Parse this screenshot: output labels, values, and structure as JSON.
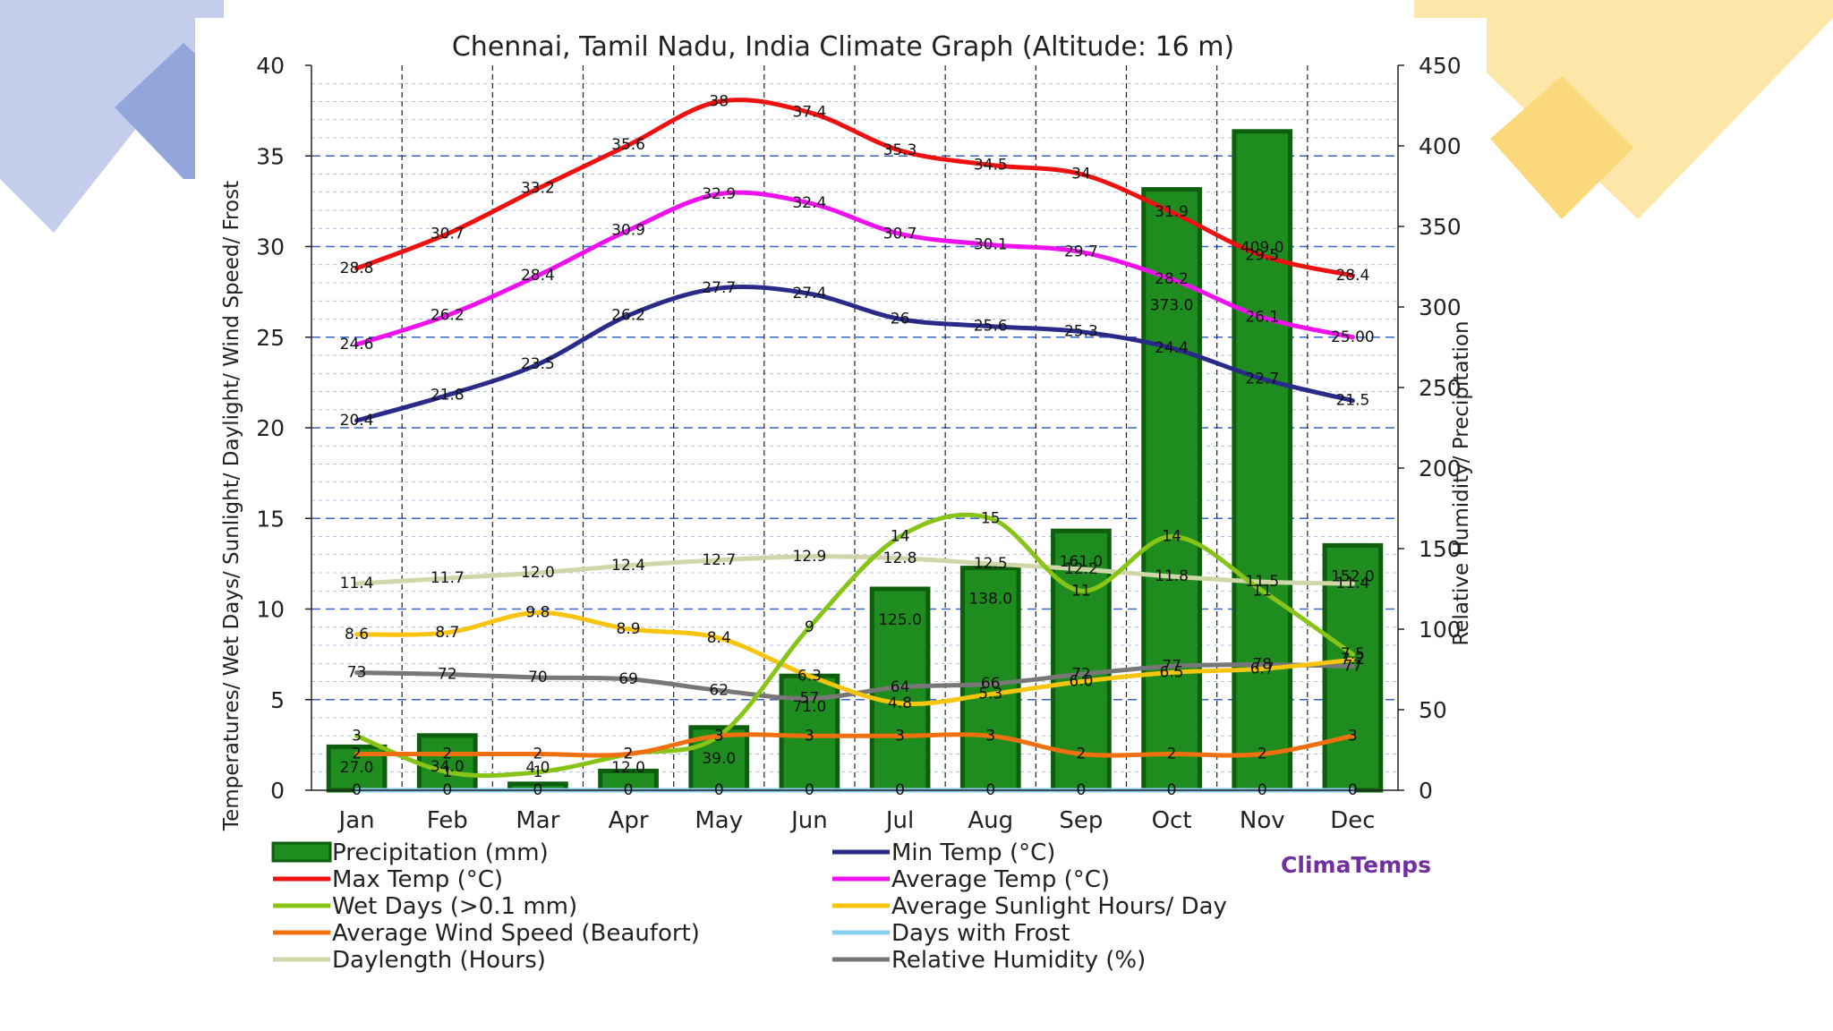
{
  "chart_data": {
    "type": "bar+line",
    "title": "Chennai, Tamil Nadu, India Climate Graph (Altitude: 16 m)",
    "ylabel_left": "Temperatures/ Wet Days/ Sunlight/ Daylight/ Wind Speed/ Frost",
    "ylabel_right": "Relative Humidity/ Precipitation",
    "ylim_left": [
      0,
      40
    ],
    "ylim_right": [
      0,
      450
    ],
    "yticks_left": [
      "0",
      "5",
      "10",
      "15",
      "20",
      "25",
      "30",
      "35",
      "40"
    ],
    "yticks_right": [
      "0",
      "50",
      "100",
      "150",
      "200",
      "250",
      "300",
      "350",
      "400",
      "450"
    ],
    "categories": [
      "Jan",
      "Feb",
      "Mar",
      "Apr",
      "May",
      "Jun",
      "Jul",
      "Aug",
      "Sep",
      "Oct",
      "Nov",
      "Dec"
    ],
    "bars": {
      "name": "Precipitation (mm)",
      "axis": "right",
      "color": "#1e8c1e",
      "values": [
        27.0,
        34.0,
        4.0,
        12.0,
        39.0,
        71.0,
        125.0,
        138.0,
        161.0,
        373.0,
        409.0,
        152.0
      ],
      "labels": [
        "27.0",
        "34.0",
        "4.0",
        "12.0",
        "39.0",
        "71.0",
        "125.0",
        "138.0",
        "161.0",
        "373.0",
        "409.0",
        "152.0"
      ]
    },
    "series": [
      {
        "name": "Max Temp (°C)",
        "color": "#ee1111",
        "axis": "left",
        "values": [
          28.8,
          30.7,
          33.2,
          35.6,
          38,
          37.4,
          35.3,
          34.5,
          34,
          31.9,
          29.5,
          28.4
        ],
        "labels": [
          "28.8",
          "30.7",
          "33.2",
          "35.6",
          "38",
          "37.4",
          "35.3",
          "34.5",
          "34",
          "31.9",
          "29.5",
          "28.4"
        ]
      },
      {
        "name": "Average Temp (°C)",
        "color": "#ee11ee",
        "axis": "left",
        "values": [
          24.6,
          26.2,
          28.4,
          30.9,
          32.9,
          32.4,
          30.7,
          30.1,
          29.7,
          28.2,
          26.1,
          25.0
        ],
        "labels": [
          "24.6",
          "26.2",
          "28.4",
          "30.9",
          "32.9",
          "32.4",
          "30.7",
          "30.1",
          "29.7",
          "28.2",
          "26.1",
          "25.00"
        ]
      },
      {
        "name": "Min Temp (°C)",
        "color": "#2a2a88",
        "axis": "left",
        "values": [
          20.4,
          21.8,
          23.5,
          26.2,
          27.7,
          27.4,
          26,
          25.6,
          25.3,
          24.4,
          22.7,
          21.5
        ],
        "labels": [
          "20.4",
          "21.8",
          "23.5",
          "26.2",
          "27.7",
          "27.4",
          "26",
          "25.6",
          "25.3",
          "24.4",
          "22.7",
          "21.5"
        ]
      },
      {
        "name": "Wet Days (>0.1 mm)",
        "color": "#88c418",
        "axis": "left",
        "values": [
          3,
          1,
          1,
          2,
          3,
          9,
          14,
          15,
          11,
          14,
          11,
          7.5
        ],
        "labels": [
          "3",
          "1",
          "1",
          "2",
          "3",
          "9",
          "14",
          "15",
          "11",
          "14",
          "11",
          "7.5"
        ]
      },
      {
        "name": "Average Sunlight Hours/ Day",
        "color": "#f7c410",
        "axis": "left",
        "values": [
          8.6,
          8.7,
          9.8,
          8.9,
          8.4,
          6.3,
          4.8,
          5.3,
          6.0,
          6.5,
          6.7,
          7.2
        ],
        "labels": [
          "8.6",
          "8.7",
          "9.8",
          "8.9",
          "8.4",
          "6.3",
          "4.8",
          "5.3",
          "6.0",
          "6.5",
          "6.7",
          "7.2"
        ]
      },
      {
        "name": "Daylength (Hours)",
        "color": "#cfd6a8",
        "axis": "left",
        "values": [
          11.4,
          11.7,
          12.0,
          12.4,
          12.7,
          12.9,
          12.8,
          12.5,
          12.2,
          11.8,
          11.5,
          11.4
        ],
        "labels": [
          "11.4",
          "11.7",
          "12.0",
          "12.4",
          "12.7",
          "12.9",
          "12.8",
          "12.5",
          "12.2",
          "11.8",
          "11.5",
          "11.4"
        ]
      },
      {
        "name": "Relative Humidity (%)",
        "color": "#777777",
        "axis": "right",
        "values": [
          73,
          72,
          70,
          69,
          62,
          57,
          64,
          66,
          72,
          77,
          78,
          77
        ],
        "labels": [
          "73",
          "72",
          "70",
          "69",
          "62",
          "57",
          "64",
          "66",
          "72",
          "77",
          "78",
          "77"
        ]
      },
      {
        "name": "Average Wind Speed (Beaufort)",
        "color": "#f07010",
        "axis": "left",
        "values": [
          2,
          2,
          2,
          2,
          3,
          3,
          3,
          3,
          2,
          2,
          2,
          3
        ],
        "labels": [
          "2",
          "2",
          "2",
          "2",
          "3",
          "3",
          "3",
          "3",
          "2",
          "2",
          "2",
          "3"
        ]
      },
      {
        "name": "Days with Frost",
        "color": "#88ccee",
        "axis": "left",
        "values": [
          0,
          0,
          0,
          0,
          0,
          0,
          0,
          0,
          0,
          0,
          0,
          0
        ],
        "labels": [
          "0",
          "0",
          "0",
          "0",
          "0",
          "0",
          "0",
          "0",
          "0",
          "0",
          "0",
          "0"
        ]
      }
    ],
    "legend": {
      "placement": "bottom",
      "entries": [
        {
          "name": "Precipitation (mm)",
          "kind": "bar",
          "color": "#1e8c1e"
        },
        {
          "name": "Min Temp (°C)",
          "kind": "line",
          "color": "#2a2a88"
        },
        {
          "name": "Max Temp (°C)",
          "kind": "line",
          "color": "#ee1111"
        },
        {
          "name": "Average Temp (°C)",
          "kind": "line",
          "color": "#ee11ee"
        },
        {
          "name": "Wet Days (>0.1 mm)",
          "kind": "line",
          "color": "#88c418"
        },
        {
          "name": "Average Sunlight Hours/ Day",
          "kind": "line",
          "color": "#f7c410"
        },
        {
          "name": "Average Wind Speed (Beaufort)",
          "kind": "line",
          "color": "#f07010"
        },
        {
          "name": "Days with Frost",
          "kind": "line",
          "color": "#88ccee"
        },
        {
          "name": "Daylength (Hours)",
          "kind": "line",
          "color": "#cfd6a8"
        },
        {
          "name": "Relative Humidity (%)",
          "kind": "line",
          "color": "#777777"
        }
      ]
    },
    "brand": "ClimaTemps"
  }
}
